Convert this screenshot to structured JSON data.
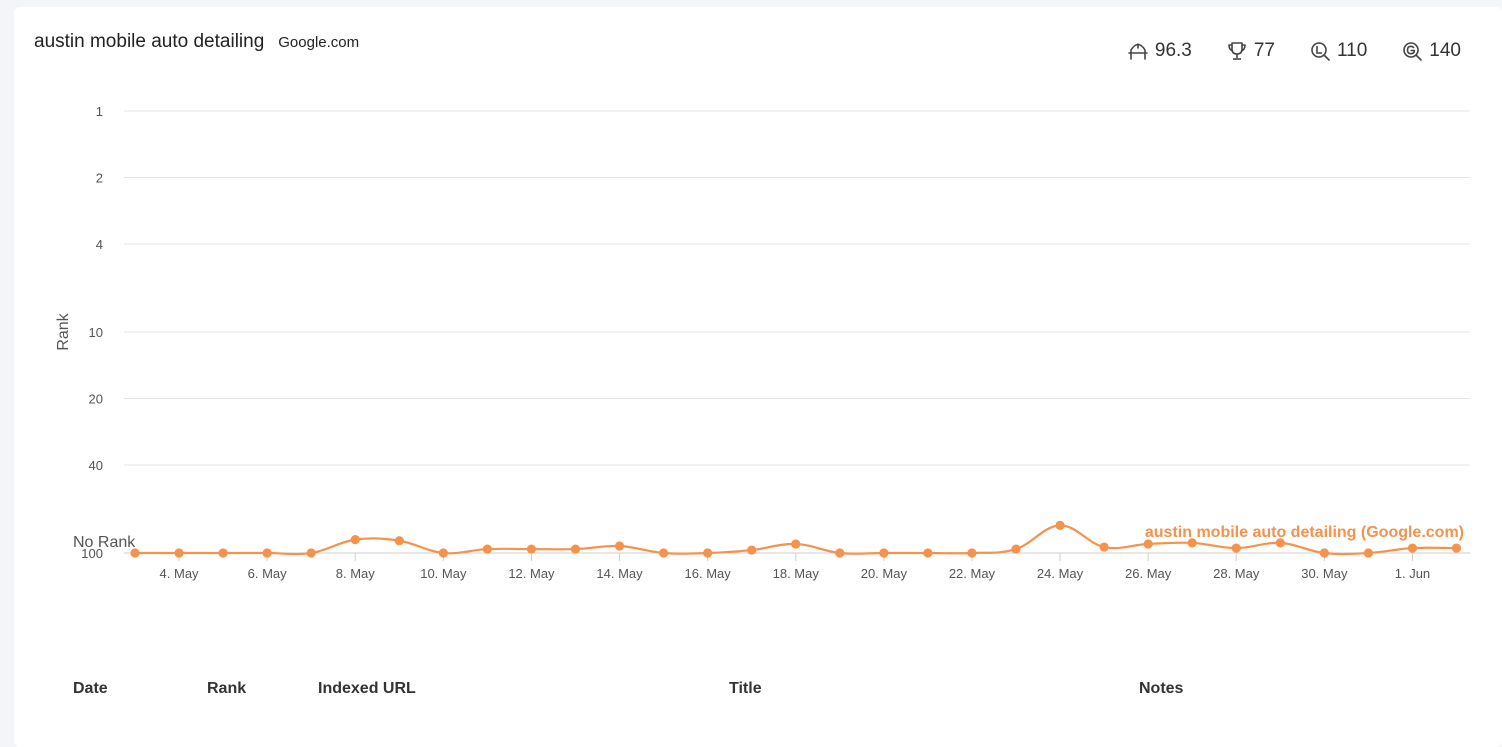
{
  "header": {
    "keyword": "austin mobile auto detailing",
    "engine": "Google.com",
    "stats": [
      {
        "icon": "visibility-score-icon",
        "value": "96.3"
      },
      {
        "icon": "trophy-icon",
        "value": "77"
      },
      {
        "icon": "local-search-icon",
        "value": "110"
      },
      {
        "icon": "google-search-icon",
        "value": "140"
      }
    ]
  },
  "colors": {
    "series": "#f5924b",
    "grid": "#e6e6e6",
    "text": "#555555"
  },
  "chart_data": {
    "type": "line",
    "ylabel": "Rank",
    "y_axis_reversed": true,
    "y_scale": "log",
    "y_ticks": [
      1,
      2,
      4,
      10,
      20,
      40,
      100
    ],
    "no_rank_label": "No Rank",
    "x": [
      "3. May",
      "4. May",
      "5. May",
      "6. May",
      "7. May",
      "8. May",
      "9. May",
      "10. May",
      "11. May",
      "12. May",
      "13. May",
      "14. May",
      "15. May",
      "16. May",
      "17. May",
      "18. May",
      "19. May",
      "20. May",
      "21. May",
      "22. May",
      "23. May",
      "24. May",
      "25. May",
      "26. May",
      "27. May",
      "28. May",
      "29. May",
      "30. May",
      "31. May",
      "1. Jun",
      "2. Jun"
    ],
    "x_tick_labels": [
      "4. May",
      "6. May",
      "8. May",
      "10. May",
      "12. May",
      "14. May",
      "16. May",
      "18. May",
      "20. May",
      "22. May",
      "24. May",
      "26. May",
      "28. May",
      "30. May",
      "1. Jun"
    ],
    "series": [
      {
        "name": "austin mobile auto detailing (Google.com)",
        "values": [
          100,
          100,
          100,
          100,
          100,
          87,
          88,
          100,
          96,
          96,
          96,
          93,
          100,
          100,
          97,
          91,
          100,
          100,
          100,
          100,
          96,
          75,
          94,
          91,
          90,
          95,
          90,
          100,
          100,
          95,
          95
        ]
      }
    ]
  },
  "table": {
    "columns": [
      "Date",
      "Rank",
      "Indexed URL",
      "Title",
      "Notes"
    ]
  }
}
